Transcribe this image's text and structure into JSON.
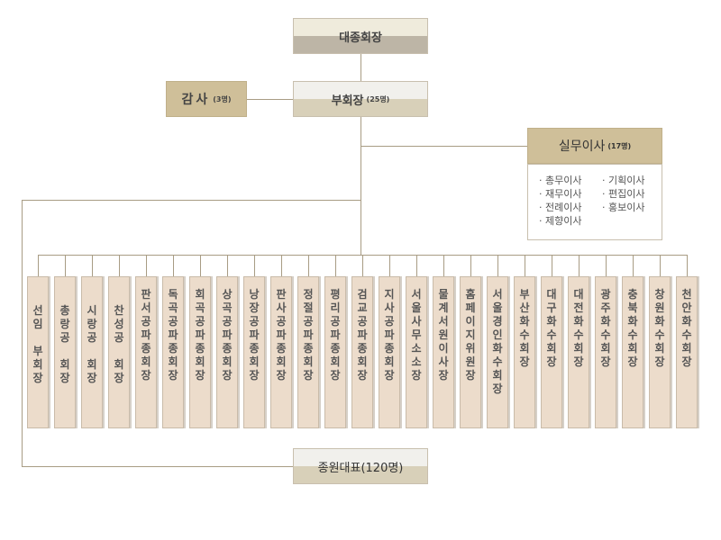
{
  "chairman": "대종회장",
  "vice": {
    "title": "부회장",
    "count": "(25명)"
  },
  "auditor": {
    "title": "감사",
    "count": "(3명)"
  },
  "directors": {
    "title": "실무이사",
    "count": "(17명)",
    "items": [
      "· 총무이사",
      "· 기획이사",
      "· 재무이사",
      "· 편집이사",
      "· 전례이사",
      "· 홍보이사",
      "· 제향이사"
    ]
  },
  "members": [
    "선임\n\n부회장",
    "총랑공\n\n회장",
    "시랑공\n\n회장",
    "찬성공\n\n회장",
    "판서공파종회장",
    "독곡공파종회장",
    "회곡공파종회장",
    "상곡공파종회장",
    "낭장공파종회장",
    "판사공파종회장",
    "정절공파종회장",
    "평리공파종회장",
    "검교공파종회장",
    "지사공파종회장",
    "서울사무소소장",
    "물계서원이사장",
    "홈페이지 위원장",
    "서울경인화수회장",
    "부산화수회장",
    "대구화수회장",
    "대전화수회장",
    "광주화수회장",
    "충북화수회장",
    "창원화수회장",
    "천안화수회장"
  ],
  "representatives": "종원대표(120명)"
}
